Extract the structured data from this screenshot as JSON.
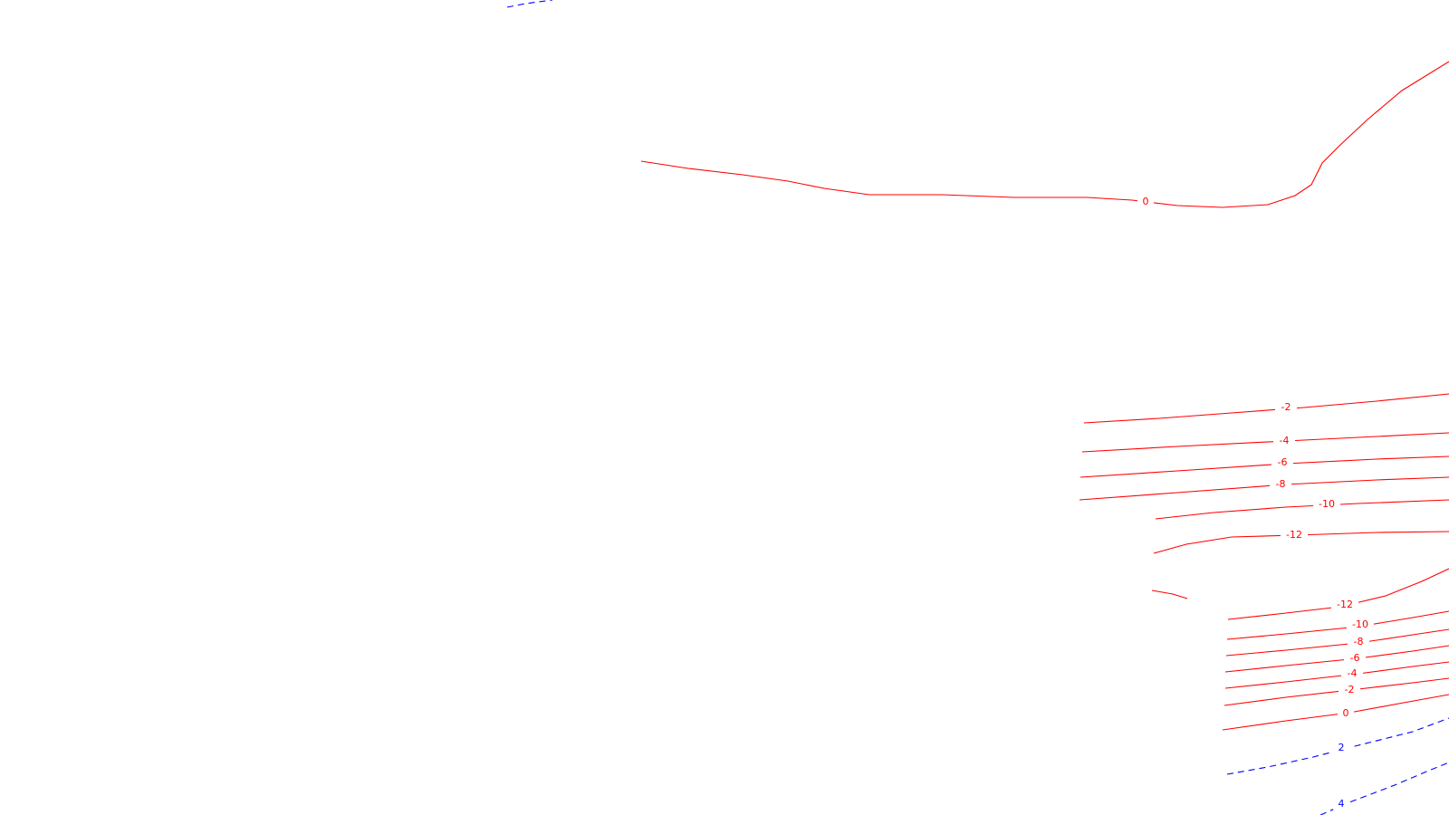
{
  "map": {
    "colors": {
      "positive": "#ff0000",
      "negative": "#0000ff",
      "background": "#ffffff"
    },
    "contours": [
      {
        "id": "upper-0",
        "label": "0",
        "style": "red"
      },
      {
        "id": "upper-right-0",
        "label": "",
        "style": "red"
      },
      {
        "id": "top-blue-dashed",
        "label": "",
        "style": "blue"
      },
      {
        "id": "mid-neg2",
        "label": "-2",
        "style": "red"
      },
      {
        "id": "mid-neg4",
        "label": "-4",
        "style": "red"
      },
      {
        "id": "mid-neg6",
        "label": "-6",
        "style": "red"
      },
      {
        "id": "mid-neg8",
        "label": "-8",
        "style": "red"
      },
      {
        "id": "mid-neg10",
        "label": "-10",
        "style": "red"
      },
      {
        "id": "mid-neg12",
        "label": "-12",
        "style": "red"
      },
      {
        "id": "short-stub",
        "label": "",
        "style": "red"
      },
      {
        "id": "low-neg12",
        "label": "-12",
        "style": "red"
      },
      {
        "id": "low-neg10",
        "label": "-10",
        "style": "red"
      },
      {
        "id": "low-neg8",
        "label": "-8",
        "style": "red"
      },
      {
        "id": "low-neg6",
        "label": "-6",
        "style": "red"
      },
      {
        "id": "low-neg4",
        "label": "-4",
        "style": "red"
      },
      {
        "id": "low-neg2",
        "label": "-2",
        "style": "red"
      },
      {
        "id": "low-0",
        "label": "0",
        "style": "red"
      },
      {
        "id": "low-blue-2",
        "label": "2",
        "style": "blue"
      },
      {
        "id": "low-blue-4",
        "label": "4",
        "style": "blue"
      }
    ]
  }
}
